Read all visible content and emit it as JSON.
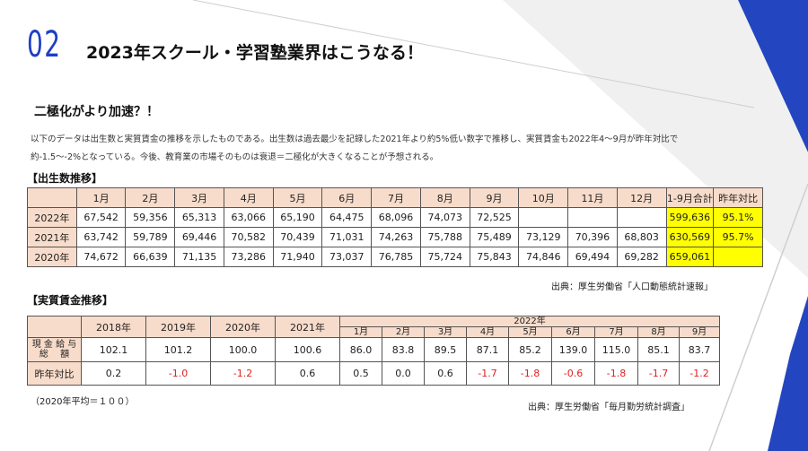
{
  "header": {
    "section_number": "02",
    "title": "2023年スクール・学習塾業界はこうなる！"
  },
  "subtitle": "二極化がより加速？！",
  "description": [
    "以下のデータは出生数と実質賃金の推移を示したものである。出生数は過去最少を記録した2021年より約5%低い数字で推移し、実質賃金も2022年4～9月が昨年対比で",
    "約-1.5～-2%となっている。今後、教育業の市場そのものは衰退＝二極化が大きくなることが予想される。"
  ],
  "births": {
    "heading": "【出生数推移】",
    "columns": [
      "",
      "1月",
      "2月",
      "3月",
      "4月",
      "5月",
      "6月",
      "7月",
      "8月",
      "9月",
      "10月",
      "11月",
      "12月",
      "1-9月合計",
      "昨年対比"
    ],
    "rows": [
      [
        "2022年",
        "67,542",
        "59,356",
        "65,313",
        "63,066",
        "65,190",
        "64,475",
        "68,096",
        "74,073",
        "72,525",
        "",
        "",
        "",
        "599,636",
        "95.1%"
      ],
      [
        "2021年",
        "63,742",
        "59,789",
        "69,446",
        "70,582",
        "70,439",
        "71,031",
        "74,263",
        "75,788",
        "75,489",
        "73,129",
        "70,396",
        "68,803",
        "630,569",
        "95.7%"
      ],
      [
        "2020年",
        "74,672",
        "66,639",
        "71,135",
        "73,286",
        "71,940",
        "73,037",
        "76,785",
        "75,724",
        "75,843",
        "74,846",
        "69,494",
        "69,282",
        "659,061",
        ""
      ]
    ],
    "source": "出典：厚生労働省「人口動態統計速報」"
  },
  "wages": {
    "heading": "【実質賃金推移】",
    "year_headers": [
      "2018年",
      "2019年",
      "2020年",
      "2021年"
    ],
    "group_header": "2022年",
    "month_headers": [
      "1月",
      "2月",
      "3月",
      "4月",
      "5月",
      "6月",
      "7月",
      "8月",
      "9月"
    ],
    "row1": {
      "label": "現 金 給 与\n総　 額",
      "values": [
        "102.1",
        "101.2",
        "100.0",
        "100.6",
        "86.0",
        "83.8",
        "89.5",
        "87.1",
        "85.2",
        "139.0",
        "115.0",
        "85.1",
        "83.7"
      ]
    },
    "row2": {
      "label": "昨年対比",
      "values": [
        "0.2",
        "-1.0",
        "-1.2",
        "0.6",
        "0.5",
        "0.0",
        "0.6",
        "-1.7",
        "-1.8",
        "-0.6",
        "-1.8",
        "-1.7",
        "-1.2"
      ]
    },
    "note": "（2020年平均＝１００）",
    "source": "出典：厚生労働省「毎月勤労統計調査」"
  },
  "colors": {
    "accent_blue": "#1f3fc7",
    "header_fill": "#f8dccb",
    "highlight": "#ffff00",
    "negative": "#e02020"
  }
}
